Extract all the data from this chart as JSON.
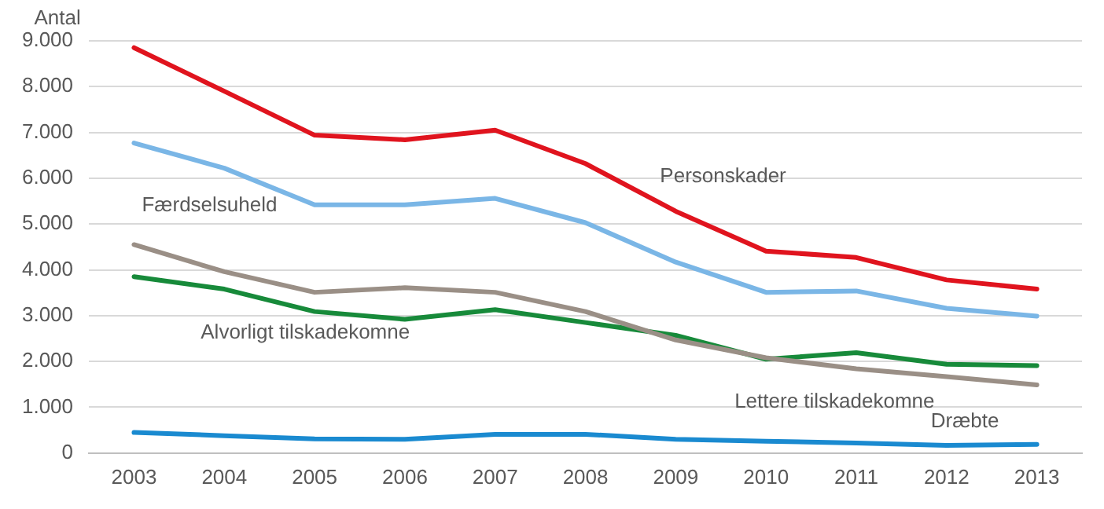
{
  "chart_data": {
    "type": "line",
    "ylabel": "Antal",
    "categories": [
      "2003",
      "2004",
      "2005",
      "2006",
      "2007",
      "2008",
      "2009",
      "2010",
      "2011",
      "2012",
      "2013"
    ],
    "series": [
      {
        "name": "Personskader",
        "color": "#e0141e",
        "values": [
          8850,
          7900,
          6940,
          6840,
          7050,
          6320,
          5280,
          4410,
          4270,
          3780,
          3580
        ]
      },
      {
        "name": "Færdselsuheld",
        "color": "#7ab6e6",
        "values": [
          6770,
          6220,
          5420,
          5420,
          5560,
          5030,
          4170,
          3510,
          3540,
          3160,
          2990
        ]
      },
      {
        "name": "Lettere tilskadekomne",
        "color": "#9a8f86",
        "values": [
          4550,
          3960,
          3510,
          3610,
          3510,
          3090,
          2470,
          2080,
          1840,
          1670,
          1490
        ]
      },
      {
        "name": "Alvorligt tilskadekomne",
        "color": "#178a3a",
        "values": [
          3850,
          3580,
          3090,
          2920,
          3130,
          2850,
          2570,
          2050,
          2190,
          1940,
          1910
        ]
      },
      {
        "name": "Dræbte",
        "color": "#1a8ad0",
        "values": [
          450,
          380,
          310,
          300,
          410,
          410,
          300,
          260,
          220,
          170,
          190
        ]
      }
    ],
    "ylim": [
      0,
      9000
    ],
    "yticks": [
      {
        "value": 0,
        "label": "0"
      },
      {
        "value": 1000,
        "label": "1.000"
      },
      {
        "value": 2000,
        "label": "2.000"
      },
      {
        "value": 3000,
        "label": "3.000"
      },
      {
        "value": 4000,
        "label": "4.000"
      },
      {
        "value": 5000,
        "label": "5.000"
      },
      {
        "value": 6000,
        "label": "6.000"
      },
      {
        "value": 7000,
        "label": "7.000"
      },
      {
        "value": 8000,
        "label": "8.000"
      },
      {
        "value": 9000,
        "label": "9.000"
      }
    ],
    "grid": "y",
    "legend": false,
    "marker": "none",
    "line_style": "solid"
  }
}
